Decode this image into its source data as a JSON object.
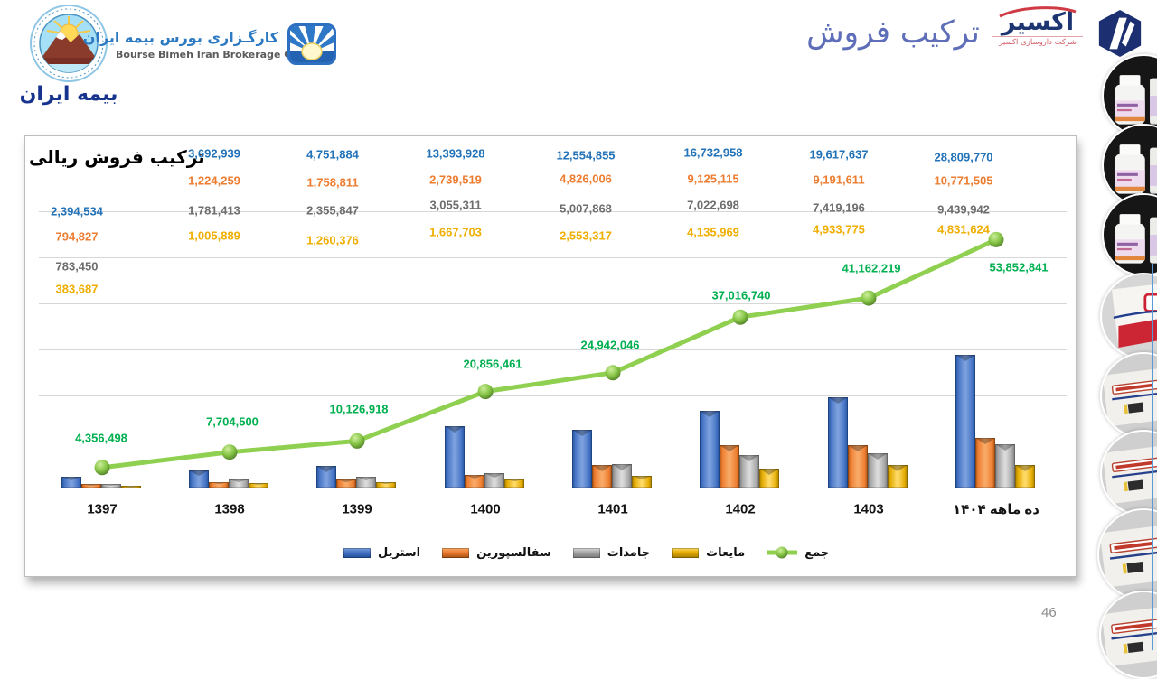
{
  "header": {
    "bimeh_iran": {
      "wordmark": "بیمه ایران"
    },
    "brokerage": {
      "title_fa": "کارگـزاری بورس بیمه ایران",
      "title_en": "Bourse Bimeh Iran Brokerage Co."
    },
    "slide_title": "ترکیب فروش",
    "exir": {
      "wordmark": "اکسیر",
      "subtitle": "شرکت داروسازی اکسیر"
    }
  },
  "footer": {
    "page_number": "46"
  },
  "chart_data": {
    "type": "bar+line",
    "title": "ترکیب فروش ریالی",
    "categories": [
      "1397",
      "1398",
      "1399",
      "1400",
      "1401",
      "1402",
      "1403",
      "ده ماهه ۱۴۰۴"
    ],
    "series": [
      {
        "name": "استریل",
        "color": "#4472c4",
        "label_color": "#2272b8",
        "values": [
          2394534,
          3692939,
          4751884,
          13393928,
          12554855,
          16732958,
          19617637,
          28809770
        ]
      },
      {
        "name": "سفالسپورین",
        "color": "#ed7d31",
        "label_color": "#ed7d31",
        "values": [
          794827,
          1224259,
          1758811,
          2739519,
          4826006,
          9125115,
          9191611,
          10771505
        ]
      },
      {
        "name": "جامدات",
        "color": "#a5a5a5",
        "label_color": "#6d6d6d",
        "values": [
          783450,
          1781413,
          2355847,
          3055311,
          5007868,
          7022698,
          7419196,
          9439942
        ]
      },
      {
        "name": "مایعات",
        "color": "#ffc000",
        "label_color": "#efae00",
        "values": [
          383687,
          1005889,
          1260376,
          1667703,
          2553317,
          4135969,
          4933775,
          4831624
        ]
      }
    ],
    "line": {
      "name": "جمع",
      "color": "#90d050",
      "label_color": "#00b050",
      "values": [
        4356498,
        7704500,
        10126918,
        20856461,
        24942046,
        37016740,
        41162219,
        53852841
      ]
    },
    "ylim": [
      0,
      60000000
    ],
    "grid_interval": 10000000,
    "grid": true,
    "legend_position": "bottom",
    "value_format": "#,##0"
  }
}
